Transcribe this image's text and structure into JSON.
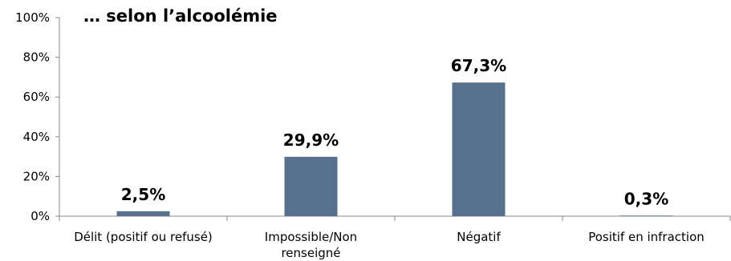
{
  "chart_data": {
    "type": "bar",
    "title": "… selon l’alcoolémie",
    "categories": [
      "Délit (positif ou refusé)",
      "Impossible/Non renseigné",
      "Négatif",
      "Positif en infraction"
    ],
    "category_lines": [
      [
        "Délit (positif ou refusé)"
      ],
      [
        "Impossible/Non",
        "renseigné"
      ],
      [
        "Négatif"
      ],
      [
        "Positif en infraction"
      ]
    ],
    "values": [
      2.5,
      29.9,
      67.3,
      0.3
    ],
    "data_labels": [
      "2,5%",
      "29,9%",
      "67,3%",
      "0,3%"
    ],
    "ylim": [
      0,
      100
    ],
    "yticks": [
      "0%",
      "20%",
      "40%",
      "60%",
      "80%",
      "100%"
    ],
    "bar_color": "#56708d",
    "xlabel": "",
    "ylabel": "",
    "grid": false
  }
}
